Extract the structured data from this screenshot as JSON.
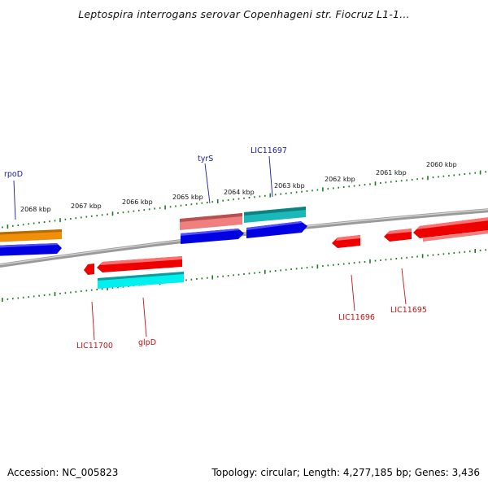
{
  "title": "Leptospira interrogans serovar Copenhageni str. Fiocruz L1-1…",
  "footer": {
    "accession": "Accession: NC_005823",
    "stats": "Topology: circular; Length: 4,277,185 bp; Genes: 3,436"
  },
  "ticks": [
    "2068 kbp",
    "2067 kbp",
    "2066 kbp",
    "2065 kbp",
    "2064 kbp",
    "2063 kbp",
    "2062 kbp",
    "2061 kbp",
    "2060 kbp"
  ],
  "genes": {
    "rpoD": "rpoD",
    "tyrS": "tyrS",
    "LIC11697": "LIC11697",
    "LIC11700": "LIC11700",
    "glpD": "glpD",
    "LIC11696": "LIC11696",
    "LIC11695": "LIC11695"
  },
  "colors": {
    "backbone": "#8a8a8a",
    "ticks": "#1e7a1e",
    "cds_blue": "#0000e0",
    "gene_red": "#ee0000",
    "orange": "#f0900a",
    "salmon": "#f08080",
    "teal": "#1ab8b8",
    "cyan": "#00f0f0"
  }
}
